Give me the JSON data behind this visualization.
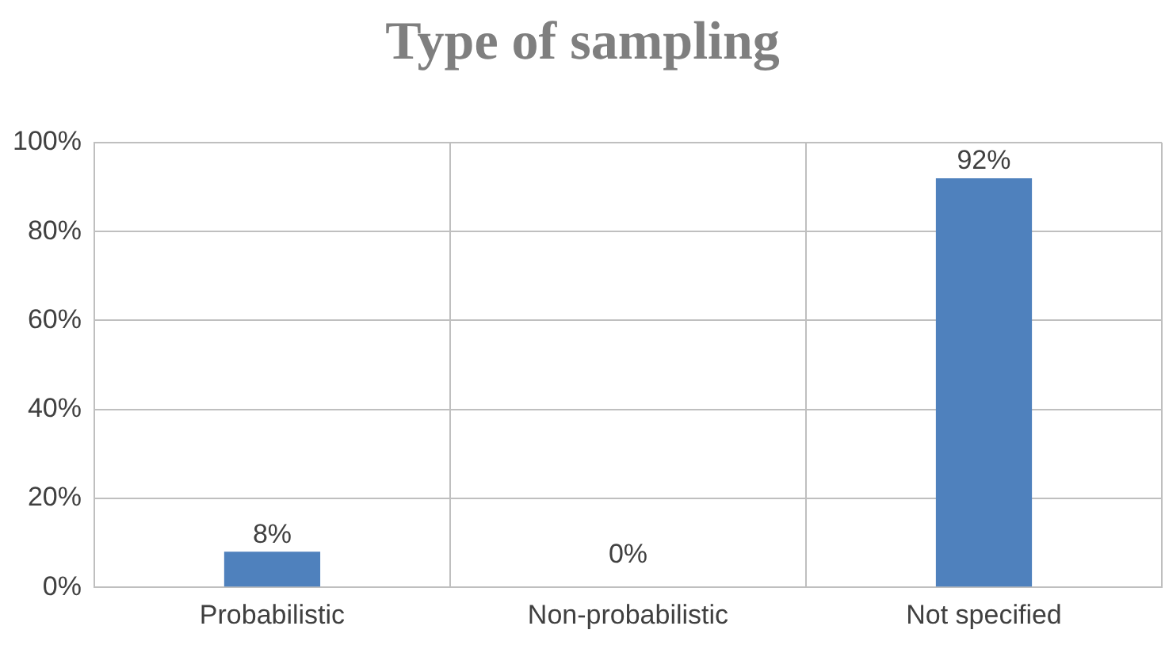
{
  "chart_data": {
    "type": "bar",
    "title": "Type of sampling",
    "categories": [
      "Probabilistic",
      "Non-probabilistic",
      "Not specified"
    ],
    "values": [
      8,
      0,
      92
    ],
    "color": "#4f81bd",
    "value_labels": [
      "8%",
      "0%",
      "92%"
    ],
    "ylim": [
      0,
      100
    ],
    "yticks": [
      {
        "value": 0,
        "label": "0%"
      },
      {
        "value": 20,
        "label": "20%"
      },
      {
        "value": 40,
        "label": "40%"
      },
      {
        "value": 60,
        "label": "60%"
      },
      {
        "value": 80,
        "label": "80%"
      },
      {
        "value": 100,
        "label": "100%"
      }
    ],
    "grid": true,
    "legend": false
  }
}
